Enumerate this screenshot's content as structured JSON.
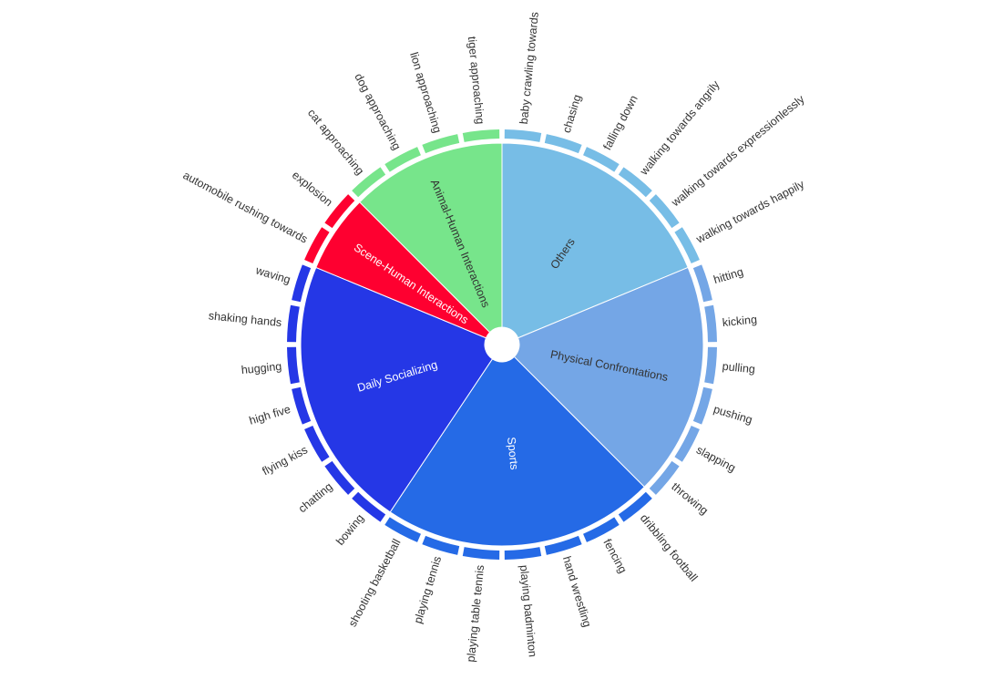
{
  "chart_data": {
    "type": "sunburst",
    "categories": [
      {
        "name": "Others",
        "color": "#77bde6",
        "text_color": "#333333",
        "items": [
          "baby crawling towards",
          "chasing",
          "falling down",
          "walking towards angrily",
          "walking towards expressionlessly",
          "walking towards happily"
        ]
      },
      {
        "name": "Physical Confrontations",
        "color": "#74a6e6",
        "text_color": "#333333",
        "items": [
          "hitting",
          "kicking",
          "pulling",
          "pushing",
          "slapping",
          "throwing"
        ]
      },
      {
        "name": "Sports",
        "color": "#256ae6",
        "text_color": "#ffffff",
        "items": [
          "dribbling football",
          "fencing",
          "hand wrestling",
          "playing badminton",
          "playing table tennis",
          "playing tennis",
          "shooting basketball"
        ]
      },
      {
        "name": "Daily Socializing",
        "color": "#2537e6",
        "text_color": "#ffffff",
        "items": [
          "bowing",
          "chatting",
          "flying kiss",
          "high five",
          "hugging",
          "shaking hands",
          "waving"
        ]
      },
      {
        "name": "Scene-Human Interactions",
        "color": "#fe0030",
        "text_color": "#ffffff",
        "items": [
          "automobile rushing towards",
          "explosion"
        ]
      },
      {
        "name": "Animal-Human Interactions",
        "color": "#77e58b",
        "text_color": "#333333",
        "items": [
          "cat approaching",
          "dog approaching",
          "lion approaching",
          "tiger approaching"
        ]
      }
    ]
  }
}
